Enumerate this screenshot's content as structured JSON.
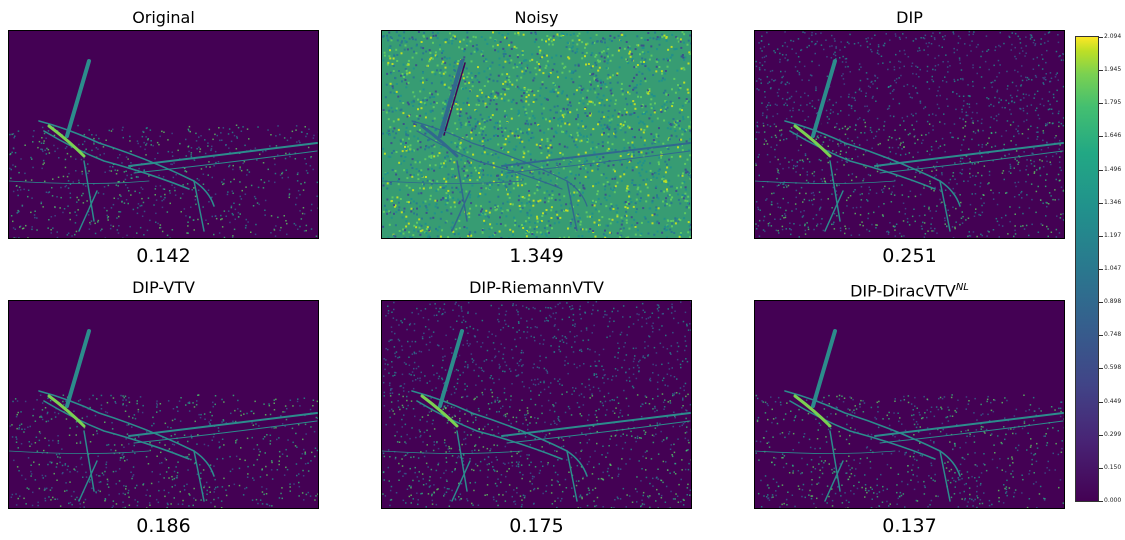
{
  "figure": {
    "panels": [
      {
        "id": "original",
        "title": "Original",
        "superscript": "",
        "score": "0.142",
        "style": "dark"
      },
      {
        "id": "noisy",
        "title": "Noisy",
        "superscript": "",
        "score": "1.349",
        "style": "noisy"
      },
      {
        "id": "dip",
        "title": "DIP",
        "superscript": "",
        "score": "0.251",
        "style": "speckle"
      },
      {
        "id": "dip-vtv",
        "title": "DIP-VTV",
        "superscript": "",
        "score": "0.186",
        "style": "dark"
      },
      {
        "id": "dip-riemannvtv",
        "title": "DIP-RiemannVTV",
        "superscript": "",
        "score": "0.175",
        "style": "speckle"
      },
      {
        "id": "dip-diracvtv",
        "title": "DIP-DiracVTV",
        "superscript": "NL",
        "score": "0.137",
        "style": "dark"
      }
    ],
    "colorbar": {
      "colormap": "viridis",
      "min": 0.0,
      "max": 2.094,
      "ticks": [
        "0.000",
        "0.150",
        "0.299",
        "0.449",
        "0.598",
        "0.748",
        "0.898",
        "1.047",
        "1.197",
        "1.346",
        "1.496",
        "1.646",
        "1.795",
        "1.945",
        "2.094"
      ]
    },
    "colors": {
      "background": "#440154",
      "dark_blue": "#3b528b",
      "teal": "#21918c",
      "green": "#5ec962",
      "yellow": "#fde725"
    }
  }
}
